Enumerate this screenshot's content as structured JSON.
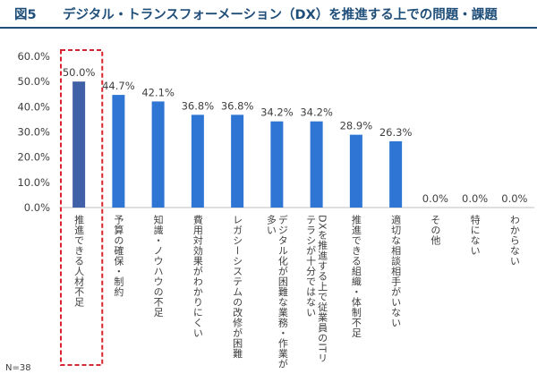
{
  "header": {
    "figure_no": "図5",
    "title": "デジタル・トランスフォーメーション（DX）を推進する上での問題・課題"
  },
  "note": "N=38",
  "chart_data": {
    "type": "bar",
    "categories": [
      "推進できる人材不足",
      "予算の確保・制約",
      "知識・ノウハウの不足",
      "費用対効果がわかりにくい",
      "レガシーシステムの改修が困難",
      "デジタル化が困難な業務・作業が多い",
      "DXを推進する上で従業員のITリテラシが十分ではない",
      "推進できる組織・体制不足",
      "適切な相談相手がいない",
      "その他",
      "特にない",
      "わからない"
    ],
    "category_lines": [
      [
        "推進できる人材不足"
      ],
      [
        "予算の確保・制約"
      ],
      [
        "知識・ノウハウの不足"
      ],
      [
        "費用対効果がわかりにくい"
      ],
      [
        "レガシーシステムの改修が困難"
      ],
      [
        "デジタル化が困難な業務・作業が",
        "多い"
      ],
      [
        "DXを推進する上で従業員のITリ",
        "テラシが十分ではない"
      ],
      [
        "推進できる組織・体制不足"
      ],
      [
        "適切な相談相手がいない"
      ],
      [
        "その他"
      ],
      [
        "特にない"
      ],
      [
        "わからない"
      ]
    ],
    "values": [
      50.0,
      44.7,
      42.1,
      36.8,
      36.8,
      34.2,
      34.2,
      28.9,
      26.3,
      0.0,
      0.0,
      0.0
    ],
    "value_labels": [
      "50.0%",
      "44.7%",
      "42.1%",
      "36.8%",
      "36.8%",
      "34.2%",
      "34.2%",
      "28.9%",
      "26.3%",
      "0.0%",
      "0.0%",
      "0.0%"
    ],
    "ylim": [
      0,
      60
    ],
    "yticks": [
      0,
      10,
      20,
      30,
      40,
      50,
      60
    ],
    "ytick_labels": [
      "0.0%",
      "10.0%",
      "20.0%",
      "30.0%",
      "40.0%",
      "50.0%",
      "60.0%"
    ],
    "highlight_index": 0,
    "colors": {
      "bar": "#2e75d4",
      "highlight_bar": "#4060a8",
      "highlight_box": "#d9232e",
      "axis": "#bfbfbf",
      "text": "#404040"
    },
    "grid": false
  }
}
